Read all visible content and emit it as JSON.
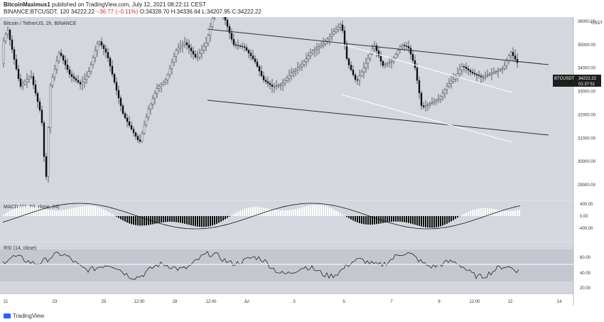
{
  "header": {
    "author": "BitcoinMaximus1",
    "published": "published on TradingView.com, July 12, 2021 08:22:11 CEST",
    "symbol_line": "BINANCE:BTCUSDT, 120",
    "last": "34222.22",
    "change": "−36.77 (−0.11%)",
    "ohlc": "O:34328.70 H:34336.64 L:34207.95 C:34222.22"
  },
  "chart_data": {
    "type": "candlestick",
    "title": "Bitcoin / TetherUS, 2h, BINANCE",
    "price_axis_label": "USDT",
    "y_ticks": [
      29000,
      30000,
      31000,
      32000,
      33000,
      34000,
      35000,
      36000
    ],
    "y_tick_labels": [
      "29000.00",
      "30000.00",
      "31000.00",
      "32000.00",
      "33000.00",
      "34000.00",
      "35000.00",
      "36000.00"
    ],
    "x_tick_labels": [
      "21",
      "23",
      "25",
      "12:00",
      "28",
      "12:00",
      "Jul",
      "3",
      "5",
      "7",
      "9",
      "12:00",
      "12",
      "14"
    ],
    "close_badge": {
      "symbol": "BTCUSDT",
      "price": "34222.22",
      "countdown": "01:37:51"
    },
    "channel": [
      {
        "from": [
          "Jun 28 12:00",
          36800
        ],
        "to": [
          "Jul 14",
          35000
        ]
      },
      {
        "from": [
          "Jun 28 12:00",
          33200
        ],
        "to": [
          "Jul 14",
          31400
        ]
      }
    ],
    "wedge": [
      {
        "from": [
          "Jul 5",
          36000
        ],
        "to": [
          "Jul 11",
          34100
        ]
      },
      {
        "from": [
          "Jul 5",
          33400
        ],
        "to": [
          "Jul 11 12:00",
          31000
        ]
      }
    ],
    "macd": {
      "label": "MACD (21, 50, close, 24)",
      "y_tick_labels": [
        "400.00",
        "0.00",
        "-400.00"
      ]
    },
    "rsi": {
      "label": "RSI (14, close)",
      "y_tick_labels": [
        "60.00",
        "40.00",
        "20.00"
      ]
    }
  },
  "footer": {
    "brand": "TradingView"
  }
}
